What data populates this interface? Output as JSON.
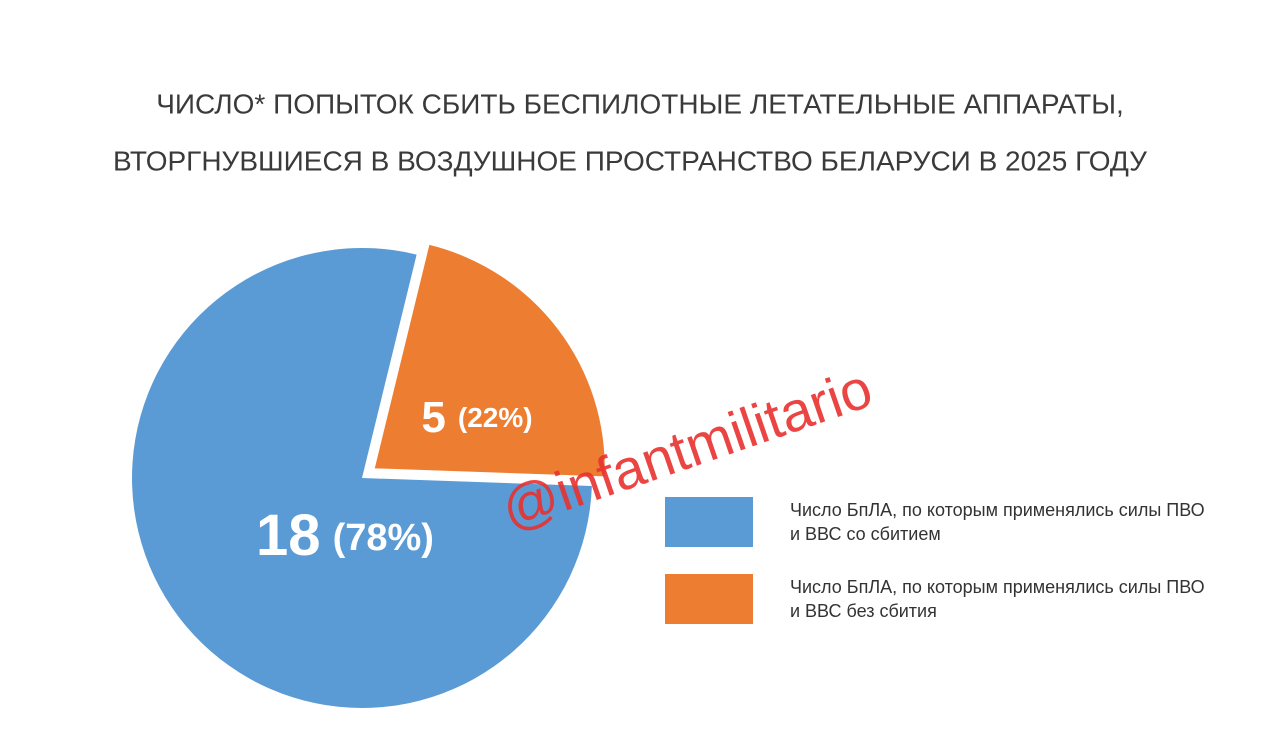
{
  "chart_data": {
    "type": "pie",
    "title": [
      "ЧИСЛО* ПОПЫТОК СБИТЬ БЕСПИЛОТНЫЕ ЛЕТАТЕЛЬНЫЕ АППАРАТЫ,",
      "ВТОРГНУВШИЕСЯ В ВОЗДУШНОЕ ПРОСТРАНСТВО БЕЛАРУСИ В 2025 ГОДУ"
    ],
    "series": [
      {
        "name": "Число БпЛА, по которым применялись силы ПВО и ВВС со сбитием",
        "color": "#5b9bd5"
      },
      {
        "name": "Число БпЛА, по которым применялись силы ПВО и ВВС без сбития",
        "color": "#ed7d31"
      }
    ],
    "values": [
      18,
      5
    ],
    "percent_labels": [
      "(78%)",
      "(22%)"
    ],
    "watermark": "@infantmilitario"
  }
}
